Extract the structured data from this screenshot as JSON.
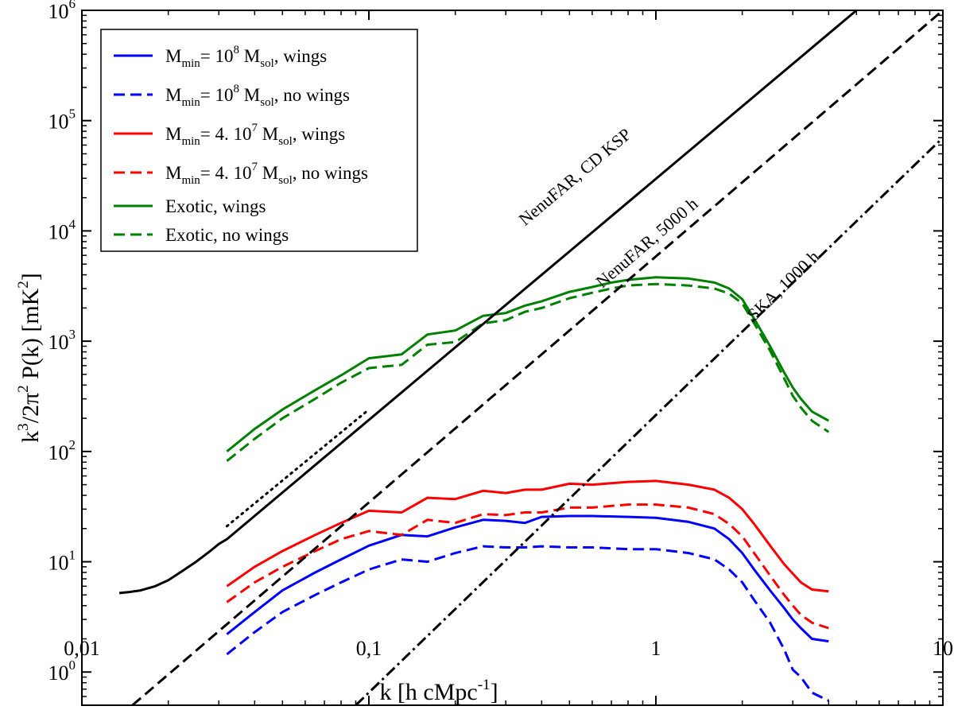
{
  "chart_data": {
    "type": "line",
    "xscale": "log",
    "yscale": "log",
    "xlim": [
      0.01,
      10
    ],
    "ylim": [
      0.5,
      1000000
    ],
    "xlabel": {
      "main": "k  [h cMpc",
      "sup": "-1",
      "tail": "]"
    },
    "ylabel": {
      "t1": "k",
      "s1": "3",
      "t2": "/2π",
      "s2": "2",
      "t3": " P(k)  [mK",
      "s3": "2",
      "t4": "]"
    },
    "x_ticks": [
      {
        "value": 0.01,
        "label": "0,01"
      },
      {
        "value": 0.1,
        "label": "0,1"
      },
      {
        "value": 1,
        "label": "1"
      },
      {
        "value": 10,
        "label": "10"
      }
    ],
    "y_ticks": [
      {
        "value": 1,
        "base": "10",
        "exp": "0"
      },
      {
        "value": 10,
        "base": "10",
        "exp": "1"
      },
      {
        "value": 100,
        "base": "10",
        "exp": "2"
      },
      {
        "value": 1000,
        "base": "10",
        "exp": "3"
      },
      {
        "value": 10000,
        "base": "10",
        "exp": "4"
      },
      {
        "value": 100000,
        "base": "10",
        "exp": "5"
      },
      {
        "value": 1000000,
        "base": "10",
        "exp": "6"
      }
    ],
    "legend": {
      "placement": "top-left",
      "entries": [
        {
          "color": "#0000ff",
          "dash": "solid",
          "t1": "M",
          "sub1": "min",
          "t2": "= 10",
          "sup": "8",
          "t3": " M",
          "sub2": "sol",
          "t4": ", wings"
        },
        {
          "color": "#0000ff",
          "dash": "dashed",
          "t1": "M",
          "sub1": "min",
          "t2": "= 10",
          "sup": "8",
          "t3": " M",
          "sub2": "sol",
          "t4": ", no wings"
        },
        {
          "color": "#ff0000",
          "dash": "solid",
          "t1": "M",
          "sub1": "min",
          "t2": "= 4. 10",
          "sup": "7",
          "t3": " M",
          "sub2": "sol",
          "t4": ", wings"
        },
        {
          "color": "#ff0000",
          "dash": "dashed",
          "t1": "M",
          "sub1": "min",
          "t2": "= 4. 10",
          "sup": "7",
          "t3": " M",
          "sub2": "sol",
          "t4": ", no wings"
        },
        {
          "color": "#008000",
          "dash": "solid",
          "t1": "Exotic, wings"
        },
        {
          "color": "#008000",
          "dash": "dashed",
          "t1": "Exotic, no wings"
        }
      ]
    },
    "series": [
      {
        "name": "M_min=10^8 M_sol, wings",
        "color": "#0000ff",
        "dash": "solid",
        "x": [
          0.032,
          0.04,
          0.05,
          0.065,
          0.08,
          0.1,
          0.13,
          0.16,
          0.2,
          0.25,
          0.3,
          0.35,
          0.4,
          0.5,
          0.6,
          0.8,
          1.0,
          1.3,
          1.6,
          1.8,
          2.0,
          2.2,
          2.5,
          2.8,
          3.0,
          3.2,
          3.5,
          4.0
        ],
        "y": [
          2.2,
          3.5,
          5.5,
          8.0,
          10.5,
          14.0,
          17.5,
          17.0,
          20.5,
          24.0,
          23.5,
          22.5,
          25.5,
          26.0,
          26.0,
          25.5,
          25.0,
          23.0,
          20.0,
          16.0,
          12.0,
          8.5,
          5.5,
          3.8,
          3.0,
          2.5,
          2.0,
          1.9
        ]
      },
      {
        "name": "M_min=10^8 M_sol, no wings",
        "color": "#0000ff",
        "dash": "dashed",
        "x": [
          0.032,
          0.04,
          0.05,
          0.065,
          0.08,
          0.1,
          0.13,
          0.16,
          0.2,
          0.25,
          0.3,
          0.35,
          0.4,
          0.5,
          0.6,
          0.8,
          1.0,
          1.3,
          1.6,
          1.8,
          2.0,
          2.2,
          2.5,
          2.8,
          3.0,
          3.2,
          3.5,
          4.0
        ],
        "y": [
          1.45,
          2.3,
          3.5,
          5.0,
          6.5,
          8.5,
          10.5,
          10.0,
          12.0,
          13.8,
          13.5,
          13.5,
          13.8,
          13.5,
          13.5,
          13.0,
          13.0,
          12.0,
          10.5,
          8.5,
          6.5,
          4.5,
          2.8,
          1.6,
          1.05,
          0.9,
          0.65,
          0.55
        ]
      },
      {
        "name": "M_min=4.10^7 M_sol, wings",
        "color": "#ff0000",
        "dash": "solid",
        "x": [
          0.032,
          0.04,
          0.05,
          0.065,
          0.08,
          0.1,
          0.13,
          0.16,
          0.2,
          0.25,
          0.3,
          0.35,
          0.4,
          0.5,
          0.6,
          0.8,
          1.0,
          1.3,
          1.6,
          1.8,
          2.0,
          2.2,
          2.5,
          2.8,
          3.0,
          3.2,
          3.5,
          4.0
        ],
        "y": [
          6.0,
          9.0,
          12.5,
          17.5,
          22.5,
          29.0,
          28.0,
          38.0,
          37.0,
          44.0,
          42.0,
          45.0,
          45.0,
          51.0,
          50.0,
          53.0,
          54.0,
          50.0,
          45.0,
          38.0,
          30.0,
          22.0,
          14.0,
          9.5,
          7.8,
          6.5,
          5.6,
          5.4
        ]
      },
      {
        "name": "M_min=4.10^7 M_sol, no wings",
        "color": "#ff0000",
        "dash": "dashed",
        "x": [
          0.032,
          0.04,
          0.05,
          0.065,
          0.08,
          0.1,
          0.13,
          0.16,
          0.2,
          0.25,
          0.3,
          0.35,
          0.4,
          0.5,
          0.6,
          0.8,
          1.0,
          1.3,
          1.6,
          1.8,
          2.0,
          2.2,
          2.5,
          2.8,
          3.0,
          3.2,
          3.5,
          4.0
        ],
        "y": [
          4.3,
          6.5,
          9.0,
          12.5,
          16.0,
          19.0,
          17.5,
          24.0,
          22.5,
          27.0,
          26.5,
          28.0,
          28.0,
          31.0,
          31.0,
          33.0,
          33.0,
          31.0,
          27.0,
          22.0,
          17.0,
          12.0,
          7.5,
          5.0,
          4.0,
          3.3,
          2.8,
          2.5
        ]
      },
      {
        "name": "Exotic, wings",
        "color": "#008000",
        "dash": "solid",
        "x": [
          0.032,
          0.04,
          0.05,
          0.065,
          0.08,
          0.1,
          0.13,
          0.16,
          0.2,
          0.25,
          0.3,
          0.35,
          0.4,
          0.5,
          0.6,
          0.7,
          0.8,
          1.0,
          1.3,
          1.6,
          1.8,
          2.0,
          2.2,
          2.5,
          2.8,
          3.0,
          3.2,
          3.5,
          4.0
        ],
        "y": [
          100,
          160,
          240,
          360,
          490,
          700,
          760,
          1150,
          1250,
          1700,
          1800,
          2100,
          2300,
          2800,
          3100,
          3400,
          3600,
          3800,
          3700,
          3400,
          3000,
          2400,
          1600,
          900,
          520,
          380,
          300,
          230,
          190
        ]
      },
      {
        "name": "Exotic, no wings",
        "color": "#008000",
        "dash": "dashed",
        "x": [
          0.032,
          0.04,
          0.05,
          0.065,
          0.08,
          0.1,
          0.13,
          0.16,
          0.2,
          0.25,
          0.3,
          0.35,
          0.4,
          0.5,
          0.6,
          0.7,
          0.8,
          1.0,
          1.3,
          1.6,
          1.8,
          2.0,
          2.2,
          2.5,
          2.8,
          3.0,
          3.2,
          3.5,
          4.0
        ],
        "y": [
          82,
          130,
          200,
          300,
          420,
          570,
          610,
          930,
          980,
          1450,
          1550,
          1850,
          2000,
          2450,
          2750,
          3000,
          3200,
          3300,
          3200,
          3000,
          2700,
          2200,
          1450,
          820,
          460,
          320,
          250,
          190,
          150
        ]
      },
      {
        "name": "NenuFAR, CD KSP (low-k)",
        "color": "#000000",
        "dash": "solid",
        "x": [
          0.0135,
          0.0145,
          0.016,
          0.018,
          0.02,
          0.022,
          0.025,
          0.028,
          0.03,
          0.032
        ],
        "y": [
          5.2,
          5.3,
          5.5,
          6.0,
          6.8,
          8.0,
          10.0,
          12.5,
          14.5,
          16.0
        ]
      },
      {
        "name": "NenuFAR, CD KSP (extrapolated)",
        "color": "#000000",
        "dash": "dotted",
        "x": [
          0.032,
          0.1
        ],
        "y": [
          21,
          240
        ]
      }
    ],
    "sensitivity_lines": [
      {
        "label": "NenuFAR, CD KSP",
        "color": "#000000",
        "dash": "solid",
        "x_start": 0.032,
        "y_start": 16,
        "x_end": 5.0,
        "y_end": 1000000,
        "label_x": 0.35,
        "label_y": 11000
      },
      {
        "label": "NenuFAR, 5000 h",
        "color": "#000000",
        "dash": "dashed",
        "x_start": 0.015,
        "y_start": 0.5,
        "x_end": 10.0,
        "y_end": 1000000,
        "label_x": 0.65,
        "label_y": 3000
      },
      {
        "label": "SKA, 1000 h",
        "color": "#000000",
        "dash": "dashdot",
        "x_start": 0.09,
        "y_start": 0.5,
        "x_end": 10.0,
        "y_end": 70000,
        "label_x": 2.2,
        "label_y": 1500
      }
    ]
  }
}
